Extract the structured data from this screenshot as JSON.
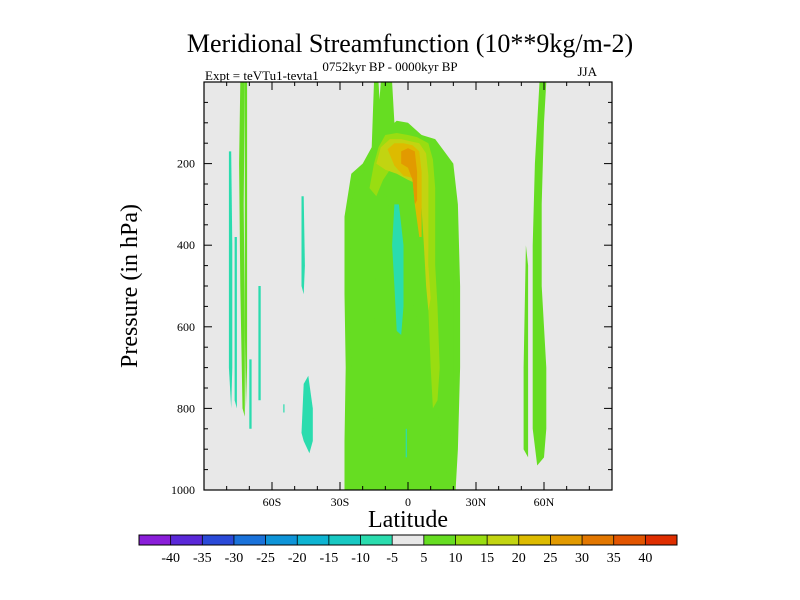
{
  "chart_data": {
    "type": "contour",
    "title": "Meridional Streamfunction (10**9kg/m-2)",
    "subtitle_left": "Expt = teVTu1-tevta1",
    "subtitle_center": "0752kyr BP - 0000kyr BP",
    "subtitle_right": "JJA",
    "xlabel": "Latitude",
    "ylabel": "Pressure (in hPa)",
    "xlim": [
      -90,
      90
    ],
    "ylim": [
      0,
      1000
    ],
    "x_ticks": [
      {
        "value": -60,
        "label": "60S"
      },
      {
        "value": -30,
        "label": "30S"
      },
      {
        "value": 0,
        "label": "0"
      },
      {
        "value": 30,
        "label": "30N"
      },
      {
        "value": 60,
        "label": "60N"
      }
    ],
    "y_ticks": [
      {
        "value": 200,
        "label": "200"
      },
      {
        "value": 400,
        "label": "400"
      },
      {
        "value": 600,
        "label": "600"
      },
      {
        "value": 800,
        "label": "800"
      },
      {
        "value": 1000,
        "label": "1000"
      }
    ],
    "background_color": "#e8e8e8",
    "colorbar": {
      "labels": [
        "-40",
        "-35",
        "-30",
        "-25",
        "-20",
        "-15",
        "-10",
        "-5",
        "5",
        "10",
        "15",
        "20",
        "25",
        "30",
        "35",
        "40"
      ],
      "colors": [
        "#8a1ed9",
        "#5a28d8",
        "#2a4ad8",
        "#1a72da",
        "#0e94d8",
        "#0eb4d2",
        "#18c8c2",
        "#2adcae",
        "#e8e8e8",
        "#66dd22",
        "#99dd11",
        "#c2d411",
        "#ddbb00",
        "#e29a00",
        "#e27700",
        "#e25500",
        "#df2e00"
      ]
    },
    "regions": [
      {
        "name": "nh-subtropical-core",
        "level": "10",
        "color": "#66dd22",
        "points": [
          [
            -28,
            1000
          ],
          [
            -28,
            880
          ],
          [
            -27.5,
            700
          ],
          [
            -28,
            520
          ],
          [
            -28,
            330
          ],
          [
            -25,
            225
          ],
          [
            -20,
            200
          ],
          [
            -16,
            160
          ],
          [
            -15,
            0
          ],
          [
            -13,
            0
          ],
          [
            -12,
            100
          ],
          [
            -8,
            110
          ],
          [
            -5,
            95
          ],
          [
            0,
            100
          ],
          [
            6,
            130
          ],
          [
            12,
            140
          ],
          [
            16,
            170
          ],
          [
            20,
            200
          ],
          [
            22,
            300
          ],
          [
            23,
            500
          ],
          [
            23,
            700
          ],
          [
            22,
            900
          ],
          [
            21,
            1000
          ]
        ]
      },
      {
        "name": "hadley-outer",
        "level": "10",
        "color": "#66dd22",
        "points": [
          [
            -25,
            1000
          ],
          [
            -25,
            700
          ],
          [
            -26,
            500
          ],
          [
            -25,
            300
          ],
          [
            -22,
            240
          ],
          [
            -17,
            200
          ],
          [
            -14,
            150
          ],
          [
            -12,
            0
          ],
          [
            -7,
            0
          ],
          [
            -6,
            100
          ],
          [
            -2,
            100
          ],
          [
            4,
            125
          ],
          [
            10,
            140
          ],
          [
            15,
            170
          ],
          [
            18,
            210
          ],
          [
            20,
            300
          ],
          [
            20,
            500
          ],
          [
            20,
            700
          ],
          [
            20,
            880
          ],
          [
            17,
            960
          ],
          [
            15,
            900
          ],
          [
            12,
            750
          ],
          [
            6,
            620
          ],
          [
            3,
            560
          ],
          [
            0,
            500
          ],
          [
            -3,
            470
          ],
          [
            -5,
            410
          ],
          [
            -8,
            320
          ],
          [
            -10,
            270
          ],
          [
            -12,
            300
          ],
          [
            -14,
            450
          ],
          [
            -15,
            650
          ],
          [
            -15,
            800
          ],
          [
            -16,
            900
          ],
          [
            -18,
            960
          ],
          [
            -22,
            980
          ]
        ]
      },
      {
        "name": "hadley-level-15",
        "level": "15",
        "color": "#99dd11",
        "points": [
          [
            -17,
            260
          ],
          [
            -15,
            200
          ],
          [
            -13,
            160
          ],
          [
            -10,
            130
          ],
          [
            -5,
            125
          ],
          [
            0,
            130
          ],
          [
            4,
            135
          ],
          [
            9,
            150
          ],
          [
            11,
            190
          ],
          [
            12,
            260
          ],
          [
            12,
            350
          ],
          [
            12,
            450
          ],
          [
            13,
            550
          ],
          [
            14,
            700
          ],
          [
            13,
            780
          ],
          [
            11,
            800
          ],
          [
            10,
            700
          ],
          [
            9,
            560
          ],
          [
            9,
            420
          ],
          [
            7,
            320
          ],
          [
            5,
            240
          ],
          [
            1,
            220
          ],
          [
            -4,
            210
          ],
          [
            -8,
            215
          ],
          [
            -11,
            240
          ],
          [
            -14,
            280
          ]
        ]
      },
      {
        "name": "hadley-level-20",
        "level": "20",
        "color": "#c2d411",
        "points": [
          [
            -14,
            200
          ],
          [
            -12,
            160
          ],
          [
            -8,
            140
          ],
          [
            -3,
            140
          ],
          [
            1,
            145
          ],
          [
            5,
            150
          ],
          [
            8,
            175
          ],
          [
            9,
            230
          ],
          [
            9,
            330
          ],
          [
            9,
            450
          ],
          [
            10,
            530
          ],
          [
            9,
            560
          ],
          [
            8,
            500
          ],
          [
            7,
            400
          ],
          [
            6,
            310
          ],
          [
            4,
            250
          ],
          [
            0,
            240
          ],
          [
            -5,
            225
          ],
          [
            -10,
            215
          ]
        ]
      },
      {
        "name": "hadley-level-25",
        "level": "25",
        "color": "#ddbb00",
        "points": [
          [
            -9,
            165
          ],
          [
            -6,
            150
          ],
          [
            -2,
            150
          ],
          [
            2,
            155
          ],
          [
            5,
            170
          ],
          [
            6,
            220
          ],
          [
            6,
            300
          ],
          [
            6,
            380
          ],
          [
            5,
            380
          ],
          [
            3,
            300
          ],
          [
            2,
            235
          ],
          [
            -2,
            230
          ],
          [
            -6,
            205
          ]
        ]
      },
      {
        "name": "hadley-level-30",
        "level": "30",
        "color": "#e29a00",
        "points": [
          [
            -3,
            170
          ],
          [
            0,
            162
          ],
          [
            3,
            170
          ],
          [
            4,
            220
          ],
          [
            4,
            290
          ],
          [
            3,
            300
          ],
          [
            2,
            240
          ],
          [
            0,
            210
          ],
          [
            -3,
            200
          ]
        ]
      },
      {
        "name": "nh-polar-column",
        "level": "10",
        "color": "#66dd22",
        "points": [
          [
            58,
            0
          ],
          [
            61,
            0
          ],
          [
            60,
            100
          ],
          [
            59,
            300
          ],
          [
            59,
            500
          ],
          [
            61,
            700
          ],
          [
            61,
            850
          ],
          [
            60,
            920
          ],
          [
            57,
            940
          ],
          [
            55,
            850
          ],
          [
            55,
            400
          ],
          [
            56,
            200
          ],
          [
            57,
            100
          ]
        ]
      },
      {
        "name": "nh-polar-strip",
        "level": "10",
        "color": "#66dd22",
        "points": [
          [
            51,
            900
          ],
          [
            51,
            700
          ],
          [
            52,
            400
          ],
          [
            53,
            450
          ],
          [
            53,
            700
          ],
          [
            53,
            920
          ]
        ]
      },
      {
        "name": "sh-polar-column-1",
        "level": "10",
        "color": "#66dd22",
        "points": [
          [
            -74,
            0
          ],
          [
            -72,
            0
          ],
          [
            -72.5,
            300
          ],
          [
            -72,
            600
          ],
          [
            -72,
            820
          ],
          [
            -73,
            800
          ],
          [
            -74,
            500
          ],
          [
            -74.5,
            200
          ]
        ]
      },
      {
        "name": "sh-polar-column-2",
        "level": "10",
        "color": "#66dd22",
        "points": [
          [
            -72,
            0
          ],
          [
            -71,
            0
          ],
          [
            -71,
            400
          ],
          [
            -71,
            700
          ],
          [
            -71.5,
            800
          ],
          [
            -72,
            600
          ]
        ]
      },
      {
        "name": "sh-negative-strip-1",
        "level": "-5",
        "color": "#2adcae",
        "points": [
          [
            -79,
            170
          ],
          [
            -78,
            170
          ],
          [
            -77.5,
            400
          ],
          [
            -77.5,
            700
          ],
          [
            -78,
            800
          ],
          [
            -79,
            700
          ],
          [
            -79,
            400
          ]
        ]
      },
      {
        "name": "sh-negative-strip-2",
        "level": "-5",
        "color": "#2adcae",
        "points": [
          [
            -76.5,
            380
          ],
          [
            -75.5,
            380
          ],
          [
            -75.5,
            650
          ],
          [
            -75.5,
            800
          ],
          [
            -76.5,
            780
          ],
          [
            -76.5,
            600
          ]
        ]
      },
      {
        "name": "sh-negative-strip-3",
        "level": "-5",
        "color": "#2adcae",
        "points": [
          [
            -70,
            680
          ],
          [
            -69,
            680
          ],
          [
            -69,
            850
          ],
          [
            -70,
            850
          ]
        ]
      },
      {
        "name": "sh-negative-strip-4",
        "level": "-5",
        "color": "#2adcae",
        "points": [
          [
            -66,
            500
          ],
          [
            -65,
            500
          ],
          [
            -65,
            780
          ],
          [
            -66,
            780
          ]
        ]
      },
      {
        "name": "sh-negative-strip-5",
        "level": "-5",
        "color": "#2adcae",
        "points": [
          [
            -55,
            790
          ],
          [
            -54.5,
            790
          ],
          [
            -54.5,
            810
          ],
          [
            -55,
            810
          ]
        ]
      },
      {
        "name": "sh-negative-lens",
        "level": "-5",
        "color": "#2adcae",
        "points": [
          [
            -47,
            280
          ],
          [
            -46,
            280
          ],
          [
            -45.5,
            450
          ],
          [
            -46,
            520
          ],
          [
            -47,
            500
          ],
          [
            -47,
            380
          ]
        ]
      },
      {
        "name": "sh-negative-blob",
        "level": "-5",
        "color": "#2adcae",
        "points": [
          [
            -46,
            740
          ],
          [
            -44,
            720
          ],
          [
            -42,
            800
          ],
          [
            -42,
            880
          ],
          [
            -43.5,
            910
          ],
          [
            -46,
            880
          ],
          [
            -47,
            860
          ]
        ]
      },
      {
        "name": "tropical-negative",
        "level": "-5",
        "color": "#2adcae",
        "points": [
          [
            -6,
            300
          ],
          [
            -4,
            300
          ],
          [
            -2,
            400
          ],
          [
            -2,
            550
          ],
          [
            -3,
            620
          ],
          [
            -5,
            610
          ],
          [
            -6,
            500
          ],
          [
            -7,
            400
          ]
        ]
      },
      {
        "name": "tropical-negative-small",
        "level": "-5",
        "color": "#2adcae",
        "points": [
          [
            -1,
            850
          ],
          [
            -0.5,
            850
          ],
          [
            -0.5,
            920
          ],
          [
            -1,
            920
          ]
        ]
      }
    ]
  }
}
